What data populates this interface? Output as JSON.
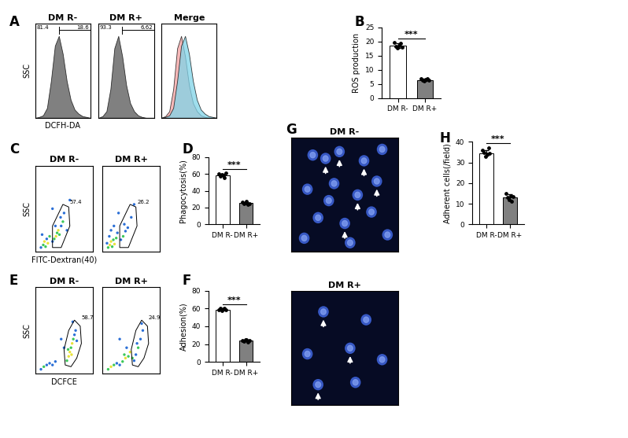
{
  "chart_data": [
    {
      "type": "histogram_group",
      "panel_label": "A",
      "x_label": "DCFH-DA",
      "y_label": "SSC",
      "tick_labels": false,
      "xlim": [
        0,
        14
      ],
      "ylim": [
        0,
        115
      ],
      "x": [
        0,
        1,
        2,
        3,
        4,
        5,
        6,
        7,
        8,
        9,
        10,
        11,
        12,
        13,
        14
      ],
      "plots": [
        {
          "title": "DM R-",
          "gate": [
            6,
            14
          ],
          "gate_values": [
            81.4,
            18.6
          ],
          "series": [
            {
              "color": "#555555",
              "values": [
                0,
                1,
                3,
                12,
                45,
                88,
                100,
                78,
                45,
                22,
                10,
                5,
                2,
                1,
                0
              ]
            }
          ]
        },
        {
          "title": "DM R+",
          "gate": [
            6,
            14
          ],
          "gate_values": [
            93.3,
            6.62
          ],
          "series": [
            {
              "color": "#555555",
              "values": [
                0,
                2,
                8,
                35,
                85,
                100,
                75,
                40,
                18,
                8,
                3,
                1,
                0,
                0,
                0
              ]
            }
          ]
        },
        {
          "title": "Merge",
          "series": [
            {
              "color": "#f4a0a0",
              "values": [
                0,
                2,
                8,
                35,
                85,
                100,
                75,
                40,
                18,
                8,
                3,
                1,
                0,
                0,
                0
              ]
            },
            {
              "color": "#7fd3e8",
              "values": [
                0,
                1,
                3,
                12,
                45,
                88,
                100,
                78,
                45,
                22,
                10,
                5,
                2,
                1,
                0
              ]
            }
          ]
        }
      ]
    },
    {
      "type": "bar",
      "panel_label": "B",
      "y_label": "ROS production",
      "categories": [
        "DM R-",
        "DM R+"
      ],
      "values": [
        18.5,
        6.4
      ],
      "errors": [
        0.7,
        0.4
      ],
      "points": [
        [
          19.5,
          18.2,
          17.8,
          18.5,
          19.2,
          18.0
        ],
        [
          6.8,
          6.2,
          5.9,
          6.5,
          7.0,
          6.3
        ]
      ],
      "colors": [
        "#ffffff",
        "#808080"
      ],
      "ylim": [
        0,
        25
      ],
      "yticks": [
        0,
        5,
        10,
        15,
        20,
        25
      ],
      "significance": "***"
    },
    {
      "type": "scatter_group",
      "panel_label": "C",
      "x_label": "FITC-Dextran(40)",
      "y_label": "SSC",
      "tick_labels": false,
      "xlim": [
        0,
        100
      ],
      "ylim": [
        0,
        100
      ],
      "plots": [
        {
          "title": "DM R-",
          "gate_value": 57.4,
          "gate": [
            [
              30,
              5
            ],
            [
              45,
              5
            ],
            [
              60,
              30
            ],
            [
              58,
              52
            ],
            [
              48,
              55
            ],
            [
              30,
              30
            ]
          ],
          "x": [
            10,
            14,
            16,
            18,
            20,
            12,
            22,
            25,
            30,
            33,
            36,
            38,
            40,
            42,
            45,
            48,
            44,
            35,
            50,
            55,
            30,
            60
          ],
          "values": [
            5,
            8,
            12,
            6,
            15,
            20,
            10,
            18,
            12,
            15,
            18,
            22,
            25,
            20,
            30,
            35,
            40,
            30,
            45,
            25,
            50,
            60
          ],
          "colors": [
            "#2b6fd6",
            "#3cc85a",
            "#e8e23a",
            "#3cc85a",
            "#2b6fd6",
            "#2b6fd6",
            "#e8e23a",
            "#3cc85a",
            "#2b6fd6",
            "#3cc85a",
            "#e8e23a",
            "#3cc85a",
            "#e8e23a",
            "#3cc85a",
            "#2b6fd6",
            "#3cc85a",
            "#2b6fd6",
            "#2b6fd6",
            "#2b6fd6",
            "#2b6fd6",
            "#2b6fd6",
            "#2b6fd6"
          ]
        },
        {
          "title": "DM R+",
          "gate_value": 26.2,
          "gate": [
            [
              30,
              5
            ],
            [
              45,
              5
            ],
            [
              60,
              30
            ],
            [
              58,
              52
            ],
            [
              48,
              55
            ],
            [
              30,
              30
            ]
          ],
          "x": [
            10,
            13,
            15,
            17,
            19,
            12,
            21,
            24,
            8,
            26,
            32,
            36,
            40,
            44,
            38,
            50,
            20,
            28,
            55,
            15
          ],
          "values": [
            5,
            8,
            12,
            6,
            14,
            18,
            9,
            16,
            10,
            22,
            14,
            18,
            24,
            28,
            32,
            40,
            30,
            45,
            55,
            25
          ],
          "colors": [
            "#3cc85a",
            "#e8e23a",
            "#e8e23a",
            "#3cc85a",
            "#3cc85a",
            "#2b6fd6",
            "#e8e23a",
            "#3cc85a",
            "#2b6fd6",
            "#2b6fd6",
            "#2b6fd6",
            "#3cc85a",
            "#2b6fd6",
            "#2b6fd6",
            "#2b6fd6",
            "#2b6fd6",
            "#2b6fd6",
            "#2b6fd6",
            "#2b6fd6",
            "#2b6fd6"
          ]
        }
      ]
    },
    {
      "type": "bar",
      "panel_label": "D",
      "y_label": "Phagocytosis(%)",
      "categories": [
        "DM R-",
        "DM R+"
      ],
      "values": [
        58.5,
        25.2
      ],
      "errors": [
        1.5,
        1.0
      ],
      "points": [
        [
          60,
          57,
          59,
          58.5,
          56,
          61
        ],
        [
          26,
          24.5,
          25.5,
          27,
          24,
          25
        ]
      ],
      "colors": [
        "#ffffff",
        "#808080"
      ],
      "ylim": [
        0,
        80
      ],
      "yticks": [
        0,
        20,
        40,
        60,
        80
      ],
      "significance": "***"
    },
    {
      "type": "scatter_group",
      "panel_label": "E",
      "x_label": "DCFCE",
      "y_label": "SSC",
      "tick_labels": false,
      "xlim": [
        0,
        100
      ],
      "ylim": [
        0,
        100
      ],
      "plots": [
        {
          "title": "DM R-",
          "gate_value": 58.7,
          "gate": [
            [
              52,
              10
            ],
            [
              62,
              8
            ],
            [
              72,
              18
            ],
            [
              80,
              35
            ],
            [
              78,
              55
            ],
            [
              68,
              62
            ],
            [
              58,
              50
            ],
            [
              50,
              28
            ]
          ],
          "x": [
            10,
            15,
            20,
            25,
            30,
            35,
            55,
            58,
            60,
            62,
            64,
            66,
            68,
            70,
            57,
            63,
            72,
            50,
            45,
            65
          ],
          "values": [
            5,
            8,
            10,
            12,
            10,
            14,
            15,
            20,
            25,
            30,
            35,
            40,
            45,
            50,
            28,
            22,
            38,
            30,
            40,
            60
          ],
          "colors": [
            "#2b6fd6",
            "#3cc85a",
            "#2b6fd6",
            "#2b6fd6",
            "#2b6fd6",
            "#2b6fd6",
            "#3cc85a",
            "#e8e23a",
            "#e8e23a",
            "#3cc85a",
            "#e8e23a",
            "#3cc85a",
            "#2b6fd6",
            "#2b6fd6",
            "#3cc85a",
            "#e8e23a",
            "#2b6fd6",
            "#2b6fd6",
            "#2b6fd6",
            "#2b6fd6"
          ]
        },
        {
          "title": "DM R+",
          "gate_value": 24.9,
          "gate": [
            [
              52,
              10
            ],
            [
              62,
              8
            ],
            [
              72,
              18
            ],
            [
              80,
              35
            ],
            [
              78,
              55
            ],
            [
              68,
              62
            ],
            [
              58,
              50
            ],
            [
              50,
              28
            ]
          ],
          "x": [
            10,
            15,
            20,
            25,
            30,
            35,
            40,
            45,
            55,
            58,
            62,
            66,
            70,
            48,
            52,
            42,
            60,
            38,
            30,
            68
          ],
          "values": [
            5,
            8,
            10,
            12,
            10,
            14,
            18,
            20,
            15,
            22,
            30,
            40,
            50,
            25,
            18,
            30,
            35,
            22,
            40,
            58
          ],
          "colors": [
            "#3cc85a",
            "#e8e23a",
            "#3cc85a",
            "#2b6fd6",
            "#2b6fd6",
            "#3cc85a",
            "#e8e23a",
            "#3cc85a",
            "#2b6fd6",
            "#2b6fd6",
            "#3cc85a",
            "#2b6fd6",
            "#2b6fd6",
            "#e8e23a",
            "#3cc85a",
            "#2b6fd6",
            "#2b6fd6",
            "#3cc85a",
            "#2b6fd6",
            "#2b6fd6"
          ]
        }
      ]
    },
    {
      "type": "bar",
      "panel_label": "F",
      "y_label": "Adhesion(%)",
      "categories": [
        "DM R-",
        "DM R+"
      ],
      "values": [
        59,
        24
      ],
      "errors": [
        0.8,
        0.9
      ],
      "points": [
        [
          59,
          60,
          58,
          59.5,
          60,
          58.5
        ],
        [
          24,
          23,
          25,
          24.5,
          22.5,
          24.2
        ]
      ],
      "colors": [
        "#ffffff",
        "#808080"
      ],
      "ylim": [
        0,
        80
      ],
      "yticks": [
        0,
        20,
        40,
        60,
        80
      ],
      "significance": "***"
    },
    {
      "type": "image",
      "panel_label": "G",
      "plots": [
        {
          "title": "DM R-"
        },
        {
          "title": "DM R+"
        }
      ]
    },
    {
      "type": "bar",
      "panel_label": "H",
      "y_label": "Adherent cells(/field)",
      "categories": [
        "DM R-",
        "DM R+"
      ],
      "values": [
        34.5,
        13
      ],
      "errors": [
        1.3,
        1.4
      ],
      "points": [
        [
          36,
          35,
          33,
          34,
          37,
          34.5
        ],
        [
          15,
          13,
          12,
          14,
          11,
          13.5
        ]
      ],
      "colors": [
        "#ffffff",
        "#808080"
      ],
      "ylim": [
        0,
        40
      ],
      "yticks": [
        0,
        10,
        20,
        30,
        40
      ],
      "significance": "***"
    }
  ]
}
